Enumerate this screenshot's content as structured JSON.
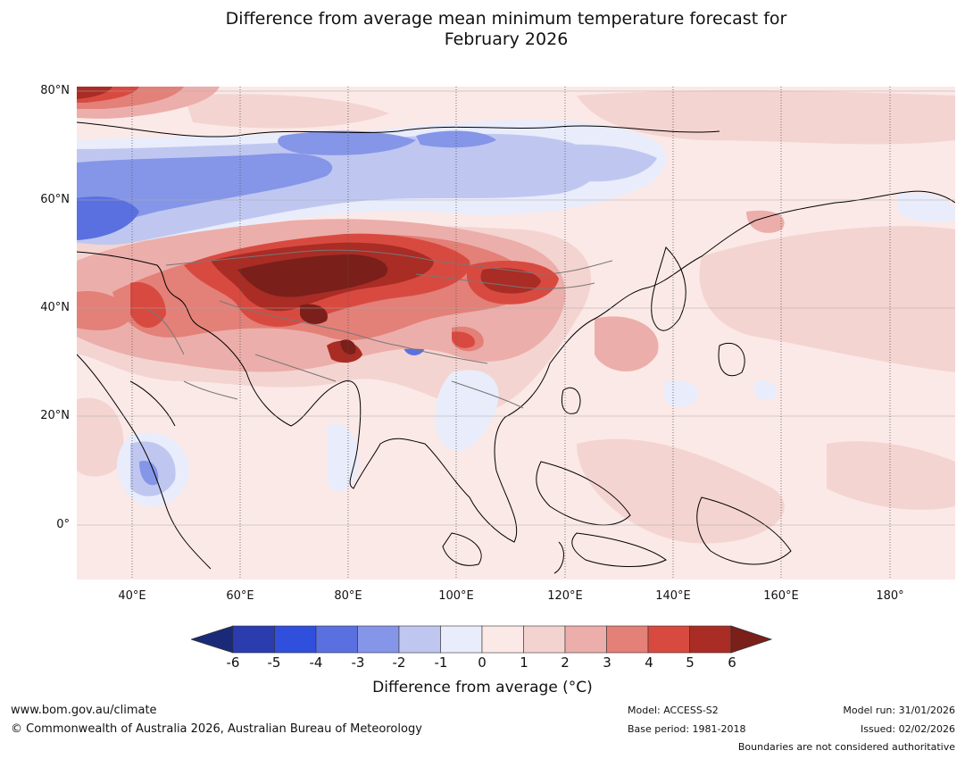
{
  "title": {
    "line1": "Difference from average mean minimum temperature forecast for",
    "line2": "February 2026"
  },
  "map": {
    "region": "Asia",
    "lat_labels": [
      "80°N",
      "60°N",
      "40°N",
      "20°N",
      "0°"
    ],
    "lon_labels": [
      "40°E",
      "60°E",
      "80°E",
      "100°E",
      "120°E",
      "140°E",
      "160°E",
      "180°"
    ],
    "anomaly_features": [
      {
        "name": "warm-core-central-asia",
        "value": 6
      },
      {
        "name": "warm-core-mongolia",
        "value": 5
      },
      {
        "name": "warm-core-caucasus",
        "value": 4
      },
      {
        "name": "cold-core-tibet",
        "value": -4
      },
      {
        "name": "cold-band-west-siberia",
        "value": -4
      },
      {
        "name": "cold-region-arctic",
        "value": -3
      },
      {
        "name": "warm-core-arctic-northwest",
        "value": 4
      }
    ]
  },
  "colorbar": {
    "ticks": [
      "-6",
      "-5",
      "-4",
      "-3",
      "-2",
      "-1",
      "0",
      "1",
      "2",
      "3",
      "4",
      "5",
      "6"
    ],
    "colors": [
      "#1b2a78",
      "#2b3caf",
      "#2f4fdc",
      "#5a70e0",
      "#8596e8",
      "#bfc7f1",
      "#e9ecfa",
      "#fbe9e7",
      "#f3d3d0",
      "#ecaeaa",
      "#e38078",
      "#d84a40",
      "#a92c25",
      "#7a1f1a"
    ],
    "label": "Difference from average (°C)"
  },
  "footer": {
    "website": "www.bom.gov.au/climate",
    "copyright": "© Commonwealth of Australia 2026, Australian Bureau of Meteorology",
    "model": "Model: ACCESS-S2",
    "base_period": "Base period: 1981-2018",
    "model_run": "Model run: 31/01/2026",
    "issued": "Issued: 02/02/2026",
    "disclaimer": "Boundaries are not considered authoritative"
  }
}
